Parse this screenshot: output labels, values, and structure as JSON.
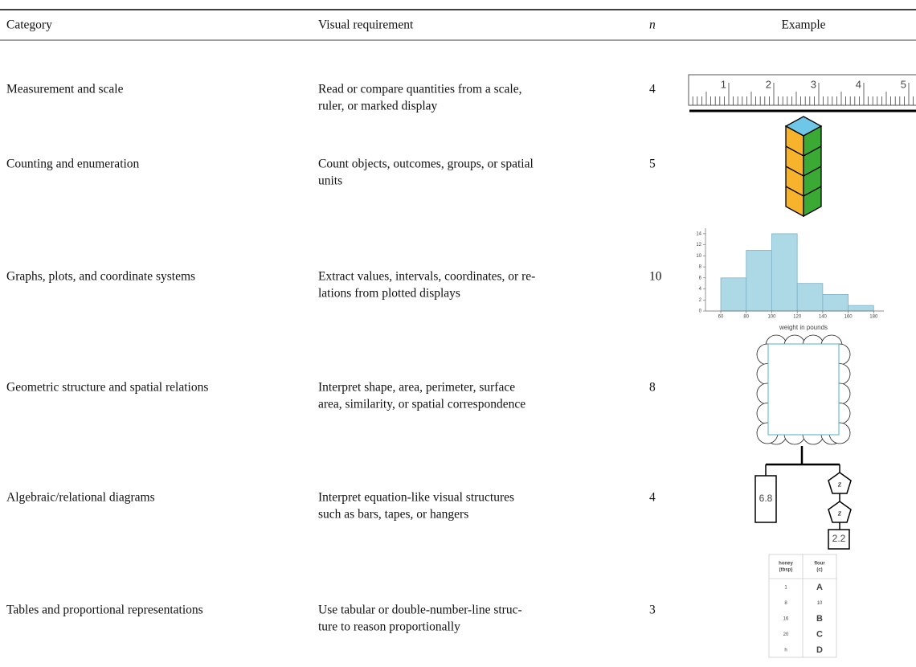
{
  "table": {
    "header": [
      "Category",
      "Visual requirement",
      "n",
      "Example"
    ],
    "rows": [
      {
        "category": "Measurement and scale",
        "requirement": [
          "Read or compare quantities from a scale,",
          "ruler, or marked display"
        ],
        "n": 4
      },
      {
        "category": "Counting and enumeration",
        "requirement": [
          "Count objects, outcomes, groups, or spatial",
          "units"
        ],
        "n": 5
      },
      {
        "category": "Graphs, plots, and coordinate systems",
        "requirement": [
          "Extract values, intervals, coordinates, or re-",
          "lations from plotted displays"
        ],
        "n": 10
      },
      {
        "category": "Geometric structure and spatial relations",
        "requirement": [
          "Interpret shape, area, perimeter, surface",
          "area, similarity, or spatial correspondence"
        ],
        "n": 8
      },
      {
        "category": "Algebraic/relational diagrams",
        "requirement": [
          "Interpret equation-like visual structures",
          "such as bars, tapes, or hangers"
        ],
        "n": 4
      },
      {
        "category": "Tables and proportional representations",
        "requirement": [
          "Use tabular or double-number-line struc-",
          "ture to reason proportionally"
        ],
        "n": 3
      }
    ]
  },
  "examples": {
    "ruler": {
      "labels": [
        1,
        2,
        3,
        4,
        5
      ]
    },
    "histogram": {
      "bins": [
        60,
        80,
        100,
        120,
        140,
        160,
        180
      ],
      "counts": [
        6,
        11,
        14,
        5,
        3,
        1
      ],
      "xlim": [
        48,
        188
      ],
      "ylim": [
        0,
        15
      ],
      "xticks": [
        60,
        80,
        100,
        120,
        140,
        160,
        180
      ],
      "yticks": [
        0,
        2,
        4,
        6,
        8,
        10,
        12,
        14
      ],
      "xlabel": "weight in pounds"
    },
    "hanger": {
      "left": "6.8",
      "shapes": [
        "z",
        "z"
      ],
      "right": "2.2"
    },
    "ratio_table": {
      "header": [
        [
          "honey",
          "(tbsp)"
        ],
        [
          "flour",
          "(c)"
        ]
      ],
      "rows": [
        [
          1,
          "A"
        ],
        [
          8,
          10
        ],
        [
          16,
          "B"
        ],
        [
          20,
          "C"
        ],
        [
          "h",
          "D"
        ]
      ]
    }
  }
}
